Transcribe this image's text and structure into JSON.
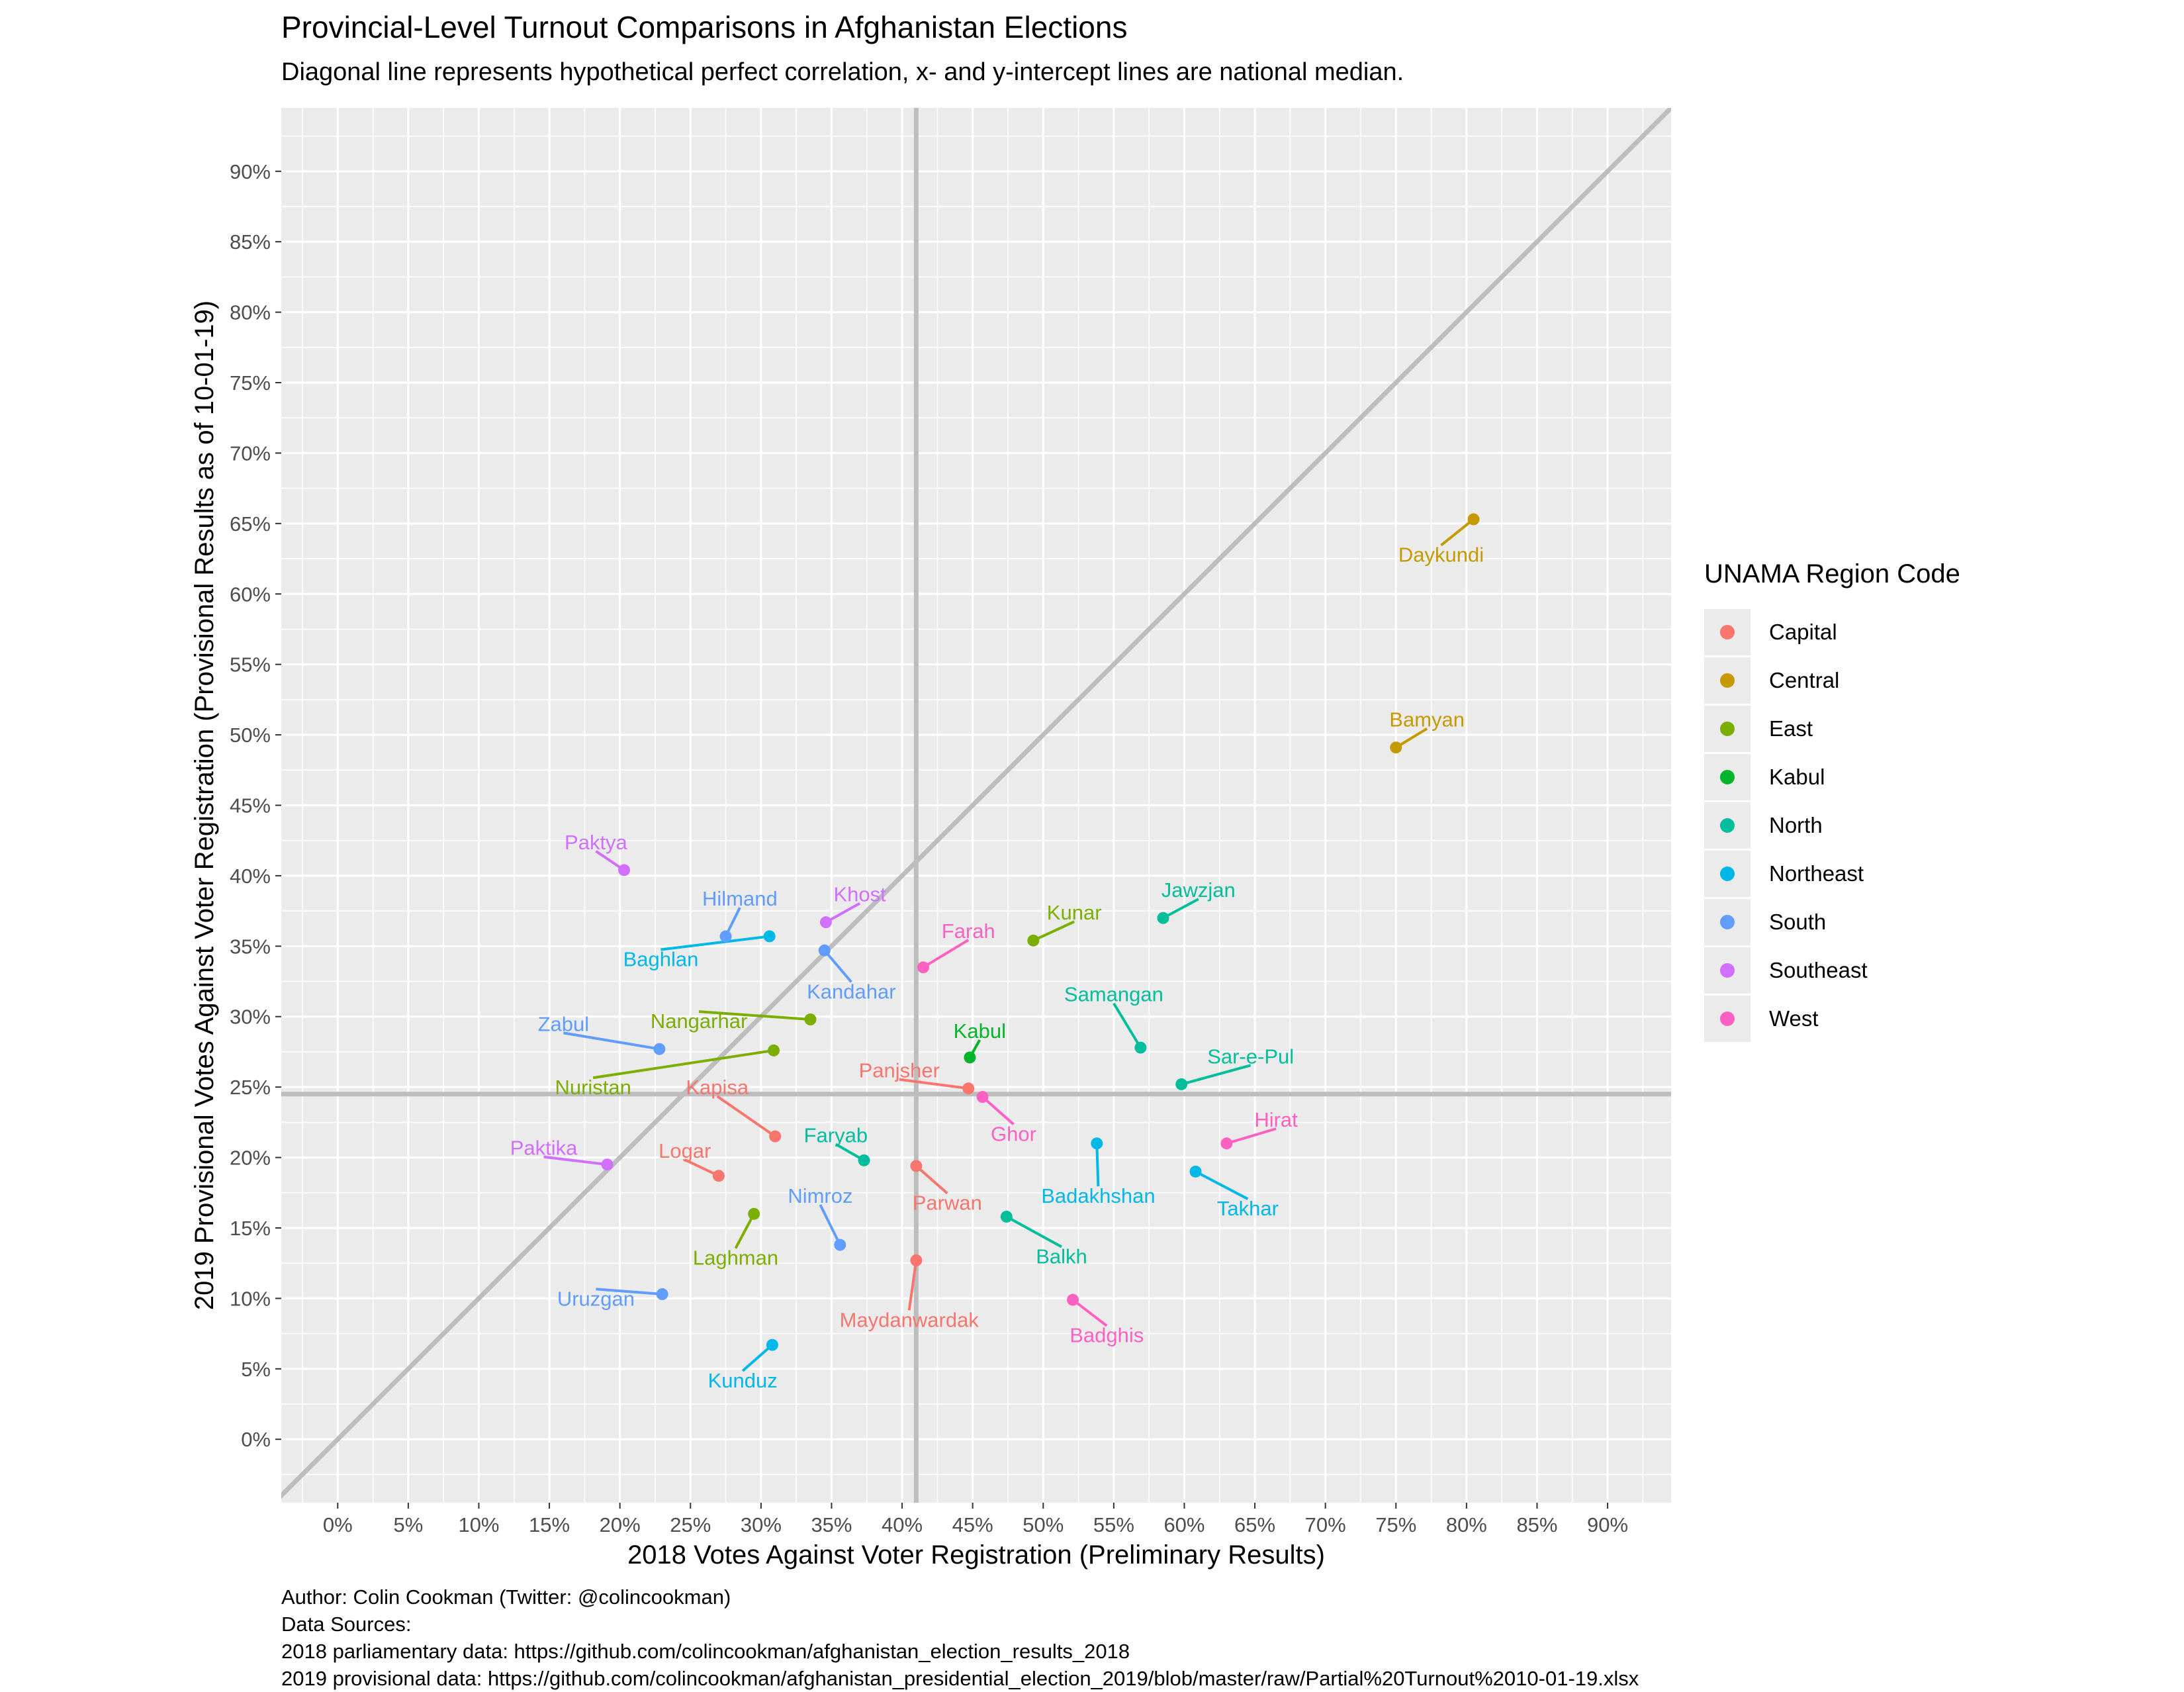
{
  "chart_data": {
    "type": "scatter",
    "title": "Provincial-Level Turnout Comparisons in Afghanistan Elections",
    "subtitle": "Diagonal line represents hypothetical perfect correlation, x- and y-intercept lines are national median.",
    "xlabel": "2018 Votes Against Voter Registration (Preliminary Results)",
    "ylabel": "2019 Provisional Votes Against Voter Registration (Provisional Results as of 10-01-19)",
    "xlim": [
      -0.04,
      0.945
    ],
    "ylim": [
      -0.045,
      0.945
    ],
    "x_ticks": [
      0,
      0.05,
      0.1,
      0.15,
      0.2,
      0.25,
      0.3,
      0.35,
      0.4,
      0.45,
      0.5,
      0.55,
      0.6,
      0.65,
      0.7,
      0.75,
      0.8,
      0.85,
      0.9
    ],
    "x_tick_labels": [
      "0%",
      "5%",
      "10%",
      "15%",
      "20%",
      "25%",
      "30%",
      "35%",
      "40%",
      "45%",
      "50%",
      "55%",
      "60%",
      "65%",
      "70%",
      "75%",
      "80%",
      "85%",
      "90%"
    ],
    "y_ticks": [
      0,
      0.05,
      0.1,
      0.15,
      0.2,
      0.25,
      0.3,
      0.35,
      0.4,
      0.45,
      0.5,
      0.55,
      0.6,
      0.65,
      0.7,
      0.75,
      0.8,
      0.85,
      0.9
    ],
    "y_tick_labels": [
      "0%",
      "5%",
      "10%",
      "15%",
      "20%",
      "25%",
      "30%",
      "35%",
      "40%",
      "45%",
      "50%",
      "55%",
      "60%",
      "65%",
      "70%",
      "75%",
      "80%",
      "85%",
      "90%"
    ],
    "reference_lines": {
      "diagonal": true,
      "x_median": 0.41,
      "y_median": 0.245
    },
    "grid": true,
    "legend": {
      "title": "UNAMA Region Code",
      "placement": "right",
      "entries": [
        {
          "name": "Capital",
          "color": "#F8766D"
        },
        {
          "name": "Central",
          "color": "#C49A00"
        },
        {
          "name": "East",
          "color": "#7CAE00"
        },
        {
          "name": "Kabul",
          "color": "#00B52A"
        },
        {
          "name": "North",
          "color": "#00BE9C"
        },
        {
          "name": "Northeast",
          "color": "#00B8E7"
        },
        {
          "name": "South",
          "color": "#619CFF"
        },
        {
          "name": "Southeast",
          "color": "#D170FF"
        },
        {
          "name": "West",
          "color": "#FF61C3"
        }
      ]
    },
    "points": [
      {
        "label": "Daykundi",
        "region": "Central",
        "x": 0.805,
        "y": 0.653,
        "lx": 0.782,
        "ly": 0.628
      },
      {
        "label": "Bamyan",
        "region": "Central",
        "x": 0.75,
        "y": 0.491,
        "lx": 0.772,
        "ly": 0.511
      },
      {
        "label": "Paktya",
        "region": "Southeast",
        "x": 0.203,
        "y": 0.404,
        "lx": 0.183,
        "ly": 0.424
      },
      {
        "label": "Hilmand",
        "region": "South",
        "x": 0.275,
        "y": 0.357,
        "lx": 0.285,
        "ly": 0.384
      },
      {
        "label": "Khost",
        "region": "Southeast",
        "x": 0.346,
        "y": 0.367,
        "lx": 0.37,
        "ly": 0.387
      },
      {
        "label": "Baghlan",
        "region": "Northeast",
        "x": 0.306,
        "y": 0.357,
        "lx": 0.229,
        "ly": 0.341
      },
      {
        "label": "Kandahar",
        "region": "South",
        "x": 0.345,
        "y": 0.347,
        "lx": 0.364,
        "ly": 0.318
      },
      {
        "label": "Farah",
        "region": "West",
        "x": 0.415,
        "y": 0.335,
        "lx": 0.447,
        "ly": 0.361
      },
      {
        "label": "Kunar",
        "region": "East",
        "x": 0.493,
        "y": 0.354,
        "lx": 0.522,
        "ly": 0.374
      },
      {
        "label": "Jawzjan",
        "region": "North",
        "x": 0.585,
        "y": 0.37,
        "lx": 0.61,
        "ly": 0.39
      },
      {
        "label": "Kabul",
        "region": "Kabul",
        "x": 0.448,
        "y": 0.271,
        "lx": 0.455,
        "ly": 0.007,
        "ly2": 0.006
      },
      {
        "label": "Samangan",
        "region": "North",
        "x": 0.569,
        "y": 0.278,
        "lx": 0.55,
        "ly": 0.316
      },
      {
        "label": "Zabul",
        "region": "South",
        "x": 0.228,
        "y": 0.277,
        "lx": 0.16,
        "ly": 0.295
      },
      {
        "label": "Nangarhar",
        "region": "East",
        "x": 0.335,
        "y": 0.298,
        "lx": 0.256,
        "ly": 0.297
      },
      {
        "label": "Nuristan",
        "region": "East",
        "x": 0.309,
        "y": 0.276,
        "lx": 0.181,
        "ly": 0.25
      },
      {
        "label": "Kapisa",
        "region": "Capital",
        "x": 0.31,
        "y": 0.215,
        "lx": 0.269,
        "ly": 0.25
      },
      {
        "label": "Panjsher",
        "region": "Capital",
        "x": 0.447,
        "y": 0.249,
        "lx": 0.398,
        "ly": 0.262
      },
      {
        "label": "Ghor",
        "region": "West",
        "x": 0.457,
        "y": 0.243,
        "lx": 0.479,
        "ly": 0.217
      },
      {
        "label": "Sar-e-Pul",
        "region": "North",
        "x": 0.598,
        "y": 0.252,
        "lx": 0.647,
        "ly": 0.272
      },
      {
        "label": "Hirat",
        "region": "West",
        "x": 0.63,
        "y": 0.21,
        "lx": 0.665,
        "ly": 0.227
      },
      {
        "label": "Faryab",
        "region": "North",
        "x": 0.373,
        "y": 0.198,
        "lx": 0.353,
        "ly": 0.216
      },
      {
        "label": "Paktika",
        "region": "Southeast",
        "x": 0.191,
        "y": 0.195,
        "lx": 0.146,
        "ly": 0.207
      },
      {
        "label": "Logar",
        "region": "Capital",
        "x": 0.27,
        "y": 0.187,
        "lx": 0.246,
        "ly": 0.205
      },
      {
        "label": "Parwan",
        "region": "Capital",
        "x": 0.41,
        "y": 0.194,
        "lx": 0.432,
        "ly": 0.168
      },
      {
        "label": "Badakhshan",
        "region": "Northeast",
        "x": 0.538,
        "y": 0.21,
        "lx": 0.539,
        "ly": 0.173
      },
      {
        "label": "Takhar",
        "region": "Northeast",
        "x": 0.608,
        "y": 0.19,
        "lx": 0.645,
        "ly": 0.164
      },
      {
        "label": "Nimroz",
        "region": "South",
        "x": 0.356,
        "y": 0.138,
        "lx": 0.342,
        "ly": 0.173
      },
      {
        "label": "Laghman",
        "region": "East",
        "x": 0.295,
        "y": 0.16,
        "lx": 0.282,
        "ly": 0.129
      },
      {
        "label": "Balkh",
        "region": "North",
        "x": 0.474,
        "y": 0.158,
        "lx": 0.513,
        "ly": 0.13
      },
      {
        "label": "Maydanwardak",
        "region": "Capital",
        "x": 0.41,
        "y": 0.127,
        "lx": 0.405,
        "ly": 0.085
      },
      {
        "label": "Uruzgan",
        "region": "South",
        "x": 0.23,
        "y": 0.103,
        "lx": 0.183,
        "ly": 0.1
      },
      {
        "label": "Badghis",
        "region": "West",
        "x": 0.521,
        "y": 0.099,
        "lx": 0.545,
        "ly": 0.074
      },
      {
        "label": "Kunduz",
        "region": "Northeast",
        "x": 0.308,
        "y": 0.067,
        "lx": 0.287,
        "ly": 0.042
      }
    ]
  },
  "caption": {
    "author": "Author: Colin Cookman (Twitter: @colincookman)",
    "sources_heading": "Data Sources:",
    "source_2018": "2018 parliamentary data: https://github.com/colincookman/afghanistan_election_results_2018",
    "source_2019": "2019 provisional data: https://github.com/colincookman/afghanistan_presidential_election_2019/blob/master/raw/Partial%20Turnout%2010-01-19.xlsx"
  }
}
